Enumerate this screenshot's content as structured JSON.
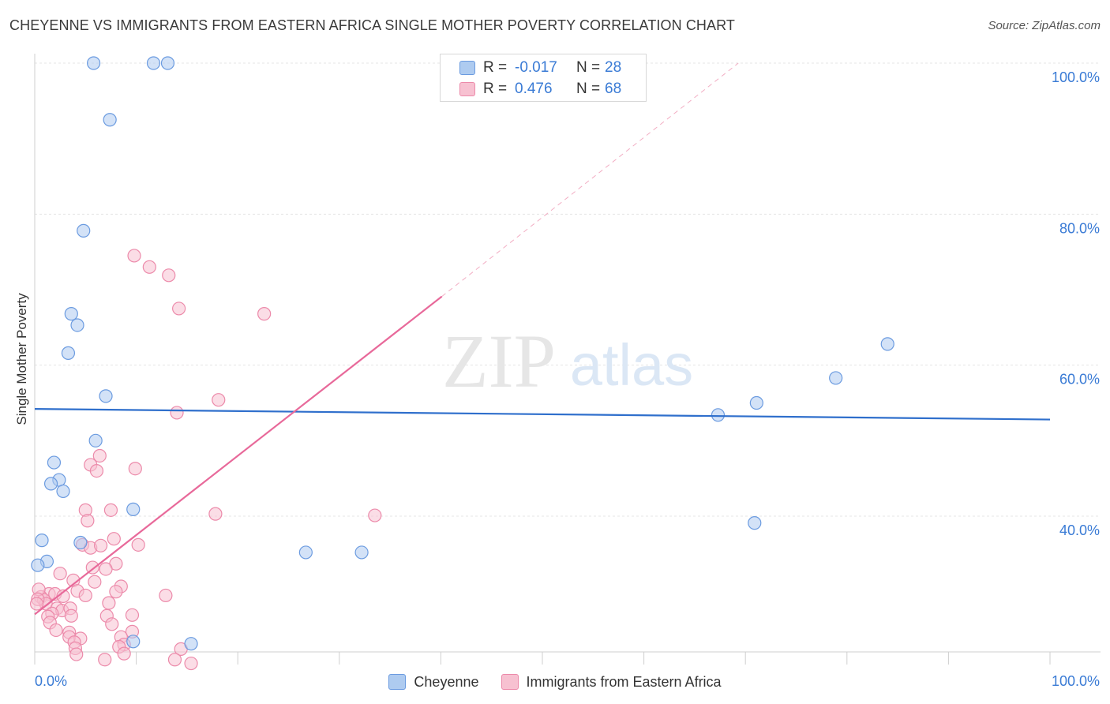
{
  "header": {
    "title": "CHEYENNE VS IMMIGRANTS FROM EASTERN AFRICA SINGLE MOTHER POVERTY CORRELATION CHART",
    "source": "Source: ZipAtlas.com"
  },
  "watermark": {
    "zip": "ZIP",
    "atlas": "atlas"
  },
  "legend_top": {
    "rows": [
      {
        "r_label": "R =",
        "r_value": "-0.017",
        "n_label": "N =",
        "n_value": "28"
      },
      {
        "r_label": "R =",
        "r_value": "0.476",
        "n_label": "N =",
        "n_value": "68"
      }
    ]
  },
  "legend_bottom": {
    "items": [
      "Cheyenne",
      "Immigrants from Eastern Africa"
    ]
  },
  "colors": {
    "cheyenne_fill": "#aecbf0",
    "cheyenne_stroke": "#6b9be0",
    "cheyenne_line": "#2f6fcc",
    "eafrica_fill": "#f7c1d1",
    "eafrica_stroke": "#ec8aaa",
    "eafrica_line": "#e8699a",
    "axis_text": "#3a7bd5",
    "grid": "#e4e4e4"
  },
  "chart_data": {
    "type": "scatter",
    "title": "CHEYENNE VS IMMIGRANTS FROM EASTERN AFRICA SINGLE MOTHER POVERTY CORRELATION CHART",
    "xlabel": "",
    "ylabel": "Single Mother Poverty",
    "xlim": [
      0,
      100
    ],
    "ylim": [
      20,
      101
    ],
    "x_tick_labels": [
      "0.0%",
      "100.0%"
    ],
    "y_ticks": [
      40,
      60,
      80,
      100
    ],
    "y_tick_labels": [
      "40.0%",
      "60.0%",
      "80.0%",
      "100.0%"
    ],
    "series": [
      {
        "name": "Cheyenne",
        "r": -0.017,
        "n": 28,
        "trend": {
          "x": [
            0,
            100
          ],
          "y": [
            54.2,
            52.8
          ]
        },
        "points": [
          [
            5.8,
            100
          ],
          [
            11.7,
            100
          ],
          [
            13.1,
            100
          ],
          [
            7.4,
            92.5
          ],
          [
            4.8,
            77.8
          ],
          [
            3.6,
            66.8
          ],
          [
            4.2,
            65.3
          ],
          [
            3.3,
            61.6
          ],
          [
            7.0,
            55.9
          ],
          [
            6.0,
            50.0
          ],
          [
            1.9,
            47.1
          ],
          [
            2.4,
            44.8
          ],
          [
            1.6,
            44.3
          ],
          [
            2.8,
            43.3
          ],
          [
            9.7,
            40.9
          ],
          [
            0.7,
            36.8
          ],
          [
            4.5,
            36.5
          ],
          [
            1.2,
            34.0
          ],
          [
            0.3,
            33.5
          ],
          [
            26.7,
            35.2
          ],
          [
            32.2,
            35.2
          ],
          [
            15.4,
            23.1
          ],
          [
            9.7,
            23.4
          ],
          [
            67.3,
            53.4
          ],
          [
            71.1,
            55.0
          ],
          [
            78.9,
            58.3
          ],
          [
            84.0,
            62.8
          ],
          [
            70.9,
            39.1
          ]
        ]
      },
      {
        "name": "Immigrants from Eastern Africa",
        "r": 0.476,
        "n": 68,
        "trend": {
          "x": [
            0,
            40.1
          ],
          "y": [
            27.0,
            69.1
          ]
        },
        "trend_extension": {
          "x": [
            40.1,
            69.3
          ],
          "y": [
            69.1,
            100
          ]
        },
        "points": [
          [
            9.8,
            74.5
          ],
          [
            11.3,
            73.0
          ],
          [
            13.2,
            71.9
          ],
          [
            14.2,
            67.5
          ],
          [
            22.6,
            66.8
          ],
          [
            18.1,
            55.4
          ],
          [
            14.0,
            53.7
          ],
          [
            6.4,
            48.0
          ],
          [
            5.5,
            46.8
          ],
          [
            9.9,
            46.3
          ],
          [
            6.1,
            46.0
          ],
          [
            5.0,
            40.8
          ],
          [
            7.5,
            40.8
          ],
          [
            17.8,
            40.3
          ],
          [
            33.5,
            40.1
          ],
          [
            5.2,
            39.4
          ],
          [
            4.7,
            36.2
          ],
          [
            5.5,
            35.8
          ],
          [
            6.5,
            36.1
          ],
          [
            10.2,
            36.2
          ],
          [
            7.8,
            37.0
          ],
          [
            8.0,
            33.7
          ],
          [
            5.7,
            33.2
          ],
          [
            7.0,
            33.0
          ],
          [
            2.5,
            32.4
          ],
          [
            3.8,
            31.5
          ],
          [
            5.9,
            31.3
          ],
          [
            8.5,
            30.7
          ],
          [
            4.2,
            30.1
          ],
          [
            8.0,
            30.0
          ],
          [
            1.4,
            29.7
          ],
          [
            2.0,
            29.7
          ],
          [
            2.8,
            29.4
          ],
          [
            5.0,
            29.5
          ],
          [
            0.6,
            29.3
          ],
          [
            0.9,
            28.9
          ],
          [
            1.1,
            28.4
          ],
          [
            7.3,
            28.5
          ],
          [
            12.9,
            29.5
          ],
          [
            2.2,
            27.8
          ],
          [
            2.7,
            27.5
          ],
          [
            3.5,
            27.8
          ],
          [
            1.7,
            27.1
          ],
          [
            1.3,
            26.7
          ],
          [
            3.6,
            26.8
          ],
          [
            7.1,
            26.8
          ],
          [
            9.6,
            26.9
          ],
          [
            1.5,
            25.9
          ],
          [
            7.6,
            25.7
          ],
          [
            2.1,
            24.9
          ],
          [
            3.4,
            24.6
          ],
          [
            9.6,
            24.7
          ],
          [
            3.4,
            24.0
          ],
          [
            4.5,
            23.8
          ],
          [
            8.5,
            24.0
          ],
          [
            3.9,
            23.3
          ],
          [
            8.8,
            23.0
          ],
          [
            4.0,
            22.5
          ],
          [
            8.3,
            22.7
          ],
          [
            14.4,
            22.4
          ],
          [
            4.1,
            21.7
          ],
          [
            6.9,
            21.0
          ],
          [
            15.4,
            20.5
          ],
          [
            8.8,
            21.8
          ],
          [
            13.8,
            21.0
          ],
          [
            0.4,
            30.3
          ],
          [
            0.3,
            29.0
          ],
          [
            0.2,
            28.4
          ]
        ]
      }
    ]
  }
}
